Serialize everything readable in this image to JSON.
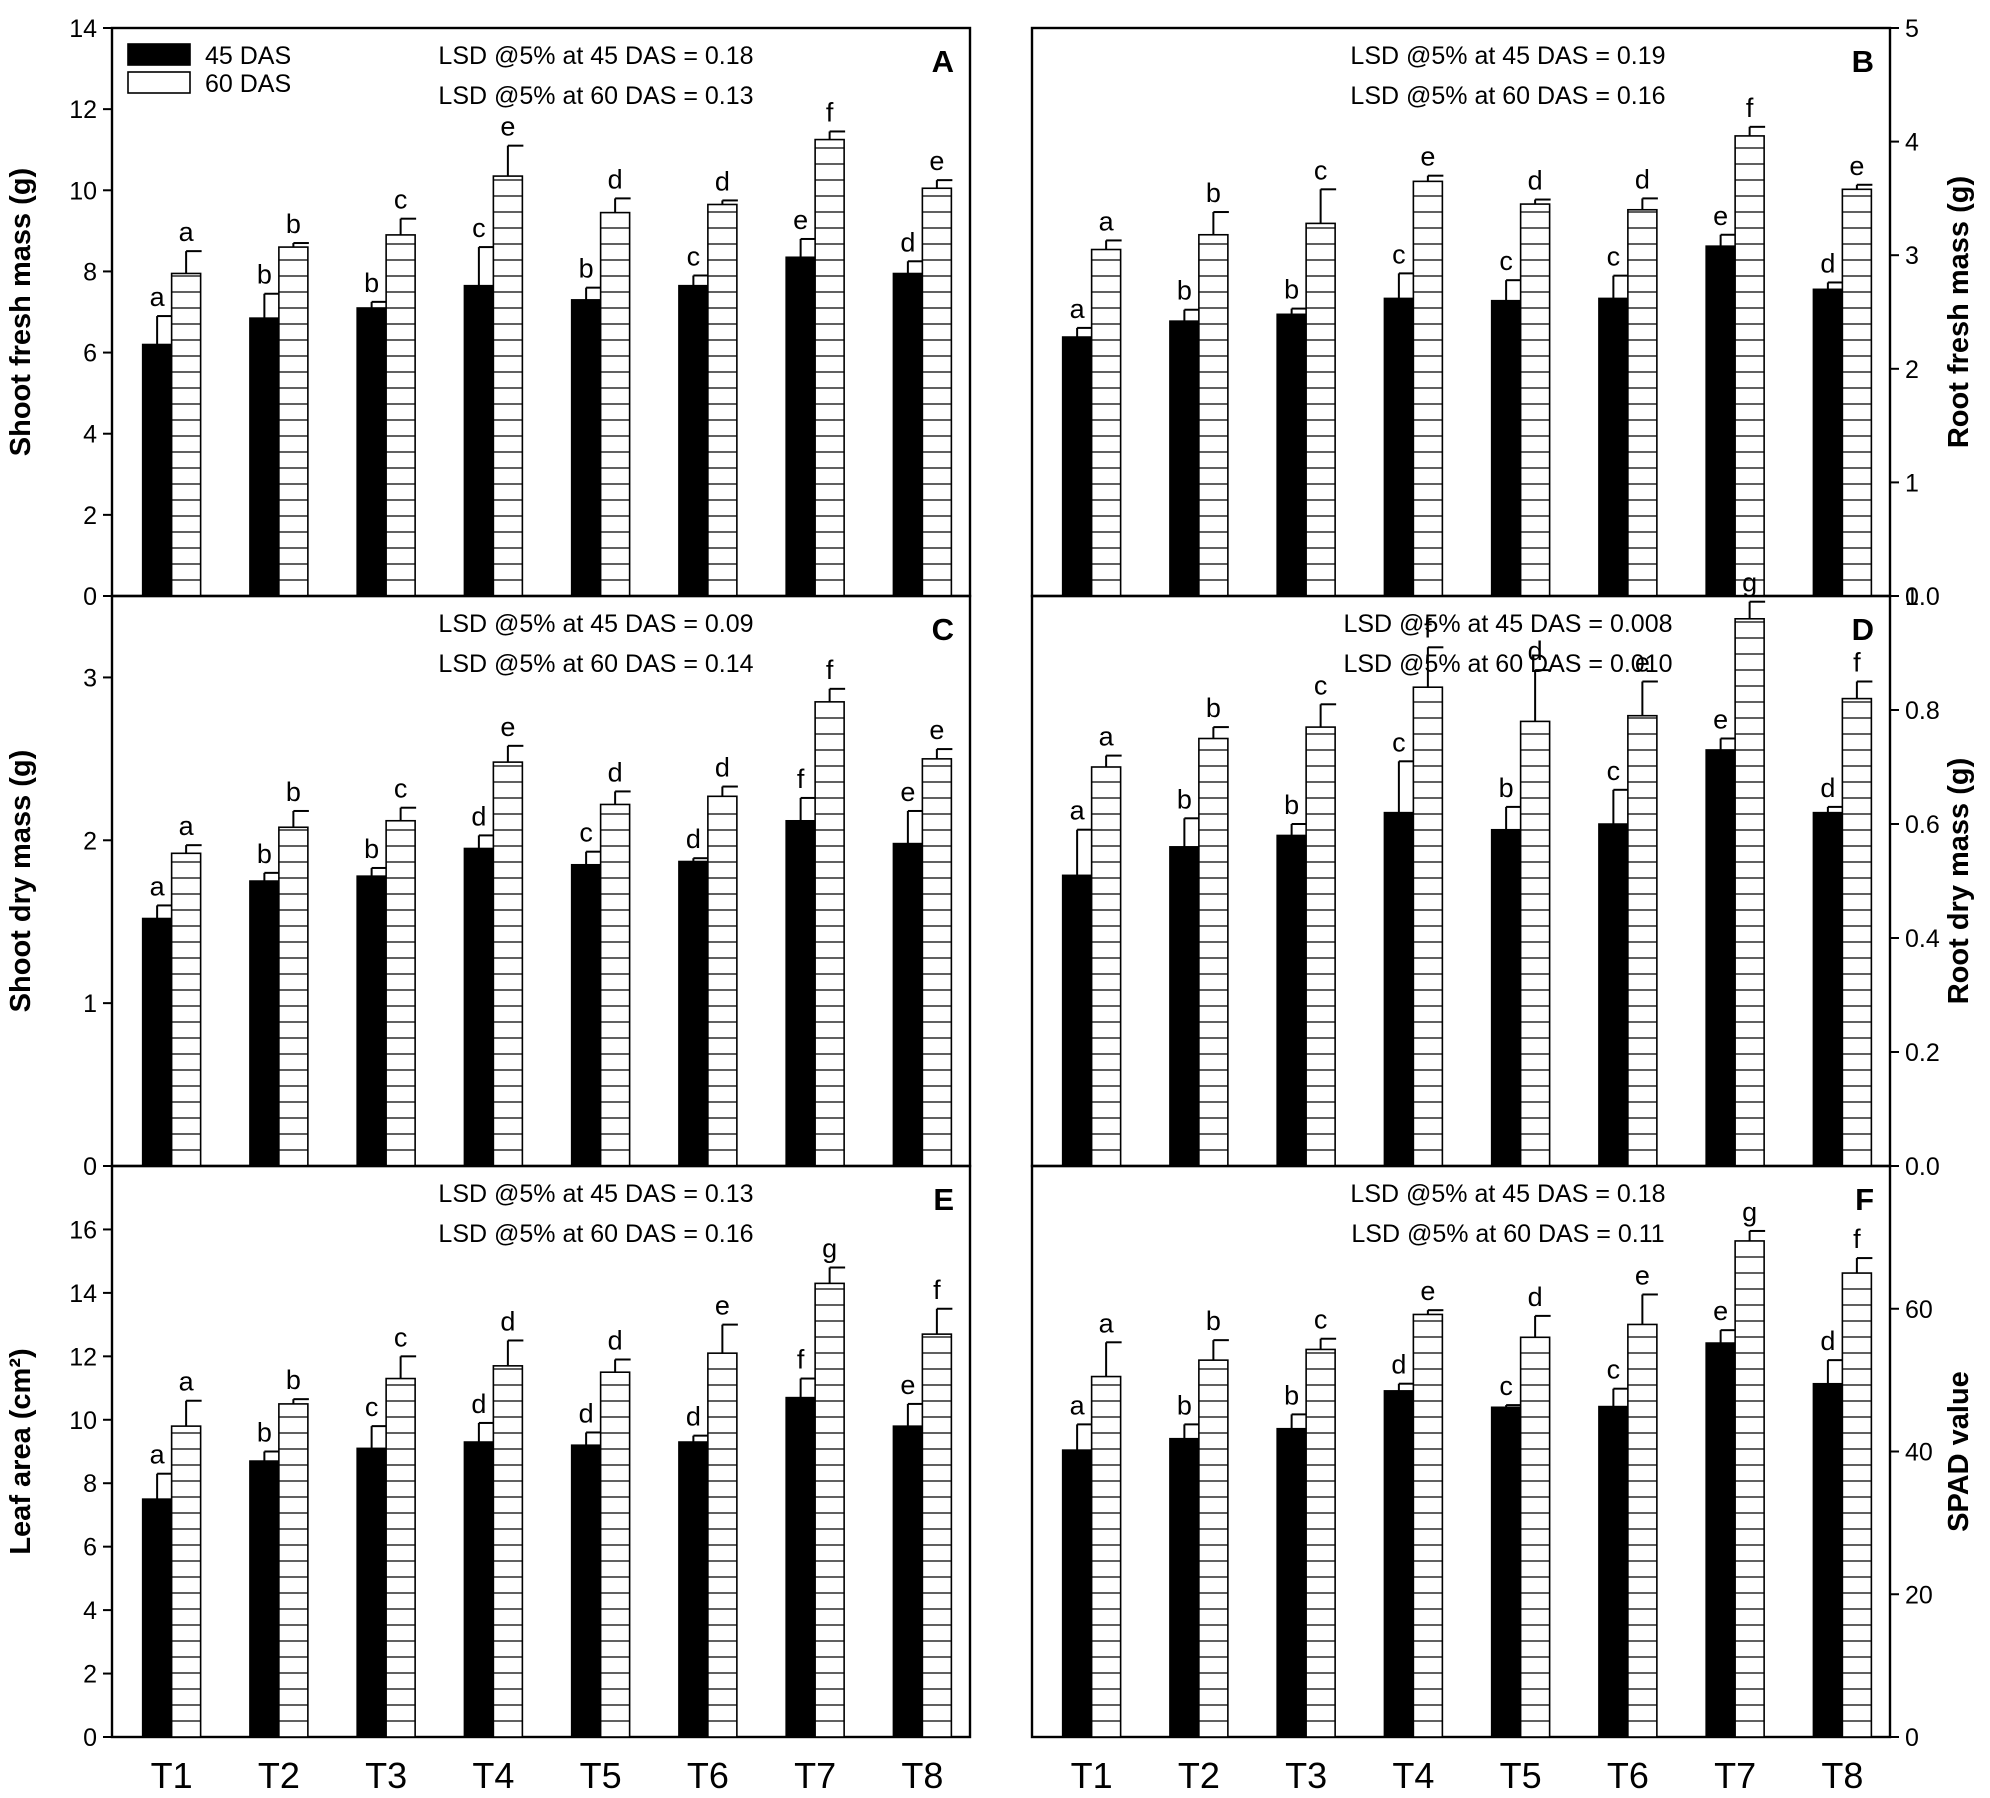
{
  "legend": {
    "items": [
      {
        "label": "45 DAS",
        "color": "#000000"
      },
      {
        "label": "60 DAS",
        "color": "#ffffff"
      }
    ]
  },
  "categories": [
    "T1",
    "T2",
    "T3",
    "T4",
    "T5",
    "T6",
    "T7",
    "T8"
  ],
  "chart_data": [
    {
      "type": "bar",
      "panel": "A",
      "ylabel": "Shoot fresh mass (g)",
      "ylim": [
        0,
        14
      ],
      "yticks": [
        "0",
        "2",
        "4",
        "6",
        "8",
        "10",
        "12",
        "14"
      ],
      "yaxis_side": "left",
      "lsd": [
        "LSD @5% at 45 DAS = 0.18",
        "LSD @5% at 60 DAS = 0.13"
      ],
      "series": [
        {
          "name": "45 DAS",
          "values": [
            6.2,
            6.85,
            7.1,
            7.65,
            7.3,
            7.65,
            8.35,
            7.95
          ],
          "errors": [
            0.7,
            0.6,
            0.15,
            0.95,
            0.3,
            0.25,
            0.45,
            0.3
          ],
          "letters": [
            "a",
            "b",
            "b",
            "c",
            "b",
            "c",
            "e",
            "d"
          ]
        },
        {
          "name": "60 DAS",
          "values": [
            7.95,
            8.6,
            8.9,
            10.35,
            9.45,
            9.65,
            11.25,
            10.05
          ],
          "errors": [
            0.55,
            0.1,
            0.4,
            0.75,
            0.35,
            0.1,
            0.2,
            0.2
          ],
          "letters": [
            "a",
            "b",
            "c",
            "e",
            "d",
            "d",
            "f",
            "e"
          ]
        }
      ]
    },
    {
      "type": "bar",
      "panel": "B",
      "ylabel": "Root fresh mass (g)",
      "ylim": [
        0,
        5
      ],
      "yticks": [
        "0",
        "1",
        "2",
        "3",
        "4",
        "5"
      ],
      "yaxis_side": "right",
      "lsd": [
        "LSD @5% at 45 DAS = 0.19",
        "LSD @5% at 60 DAS = 0.16"
      ],
      "series": [
        {
          "name": "45 DAS",
          "values": [
            2.28,
            2.42,
            2.48,
            2.62,
            2.6,
            2.62,
            3.08,
            2.7
          ],
          "errors": [
            0.08,
            0.1,
            0.05,
            0.22,
            0.18,
            0.2,
            0.1,
            0.06
          ],
          "letters": [
            "a",
            "b",
            "b",
            "c",
            "c",
            "c",
            "e",
            "d"
          ]
        },
        {
          "name": "60 DAS",
          "values": [
            3.05,
            3.18,
            3.28,
            3.65,
            3.45,
            3.4,
            4.05,
            3.58
          ],
          "errors": [
            0.08,
            0.2,
            0.3,
            0.05,
            0.04,
            0.1,
            0.08,
            0.04
          ],
          "letters": [
            "a",
            "b",
            "c",
            "e",
            "d",
            "d",
            "f",
            "e"
          ]
        }
      ]
    },
    {
      "type": "bar",
      "panel": "C",
      "ylabel": "Shoot dry mass (g)",
      "ylim": [
        0,
        3.5
      ],
      "yticks": [
        "0",
        "1",
        "2",
        "3"
      ],
      "yaxis_side": "left",
      "lsd": [
        "LSD @5% at 45 DAS = 0.09",
        "LSD @5% at 60 DAS = 0.14"
      ],
      "series": [
        {
          "name": "45 DAS",
          "values": [
            1.52,
            1.75,
            1.78,
            1.95,
            1.85,
            1.87,
            2.12,
            1.98
          ],
          "errors": [
            0.08,
            0.05,
            0.05,
            0.08,
            0.08,
            0.02,
            0.14,
            0.2
          ],
          "letters": [
            "a",
            "b",
            "b",
            "d",
            "c",
            "d",
            "f",
            "e"
          ]
        },
        {
          "name": "60 DAS",
          "values": [
            1.92,
            2.08,
            2.12,
            2.48,
            2.22,
            2.27,
            2.85,
            2.5
          ],
          "errors": [
            0.05,
            0.1,
            0.08,
            0.1,
            0.08,
            0.06,
            0.08,
            0.06
          ],
          "letters": [
            "a",
            "b",
            "c",
            "e",
            "d",
            "d",
            "f",
            "e"
          ]
        }
      ]
    },
    {
      "type": "bar",
      "panel": "D",
      "ylabel": "Root dry mass (g)",
      "ylim": [
        0,
        1.0
      ],
      "yticks": [
        "0.0",
        "0.2",
        "0.4",
        "0.6",
        "0.8",
        "1.0"
      ],
      "yaxis_side": "right",
      "lsd": [
        "LSD @5% at 45 DAS = 0.008",
        "LSD @5% at 60 DAS = 0.010"
      ],
      "series": [
        {
          "name": "45 DAS",
          "values": [
            0.51,
            0.56,
            0.58,
            0.62,
            0.59,
            0.6,
            0.73,
            0.62
          ],
          "errors": [
            0.08,
            0.05,
            0.02,
            0.09,
            0.04,
            0.06,
            0.02,
            0.01
          ],
          "letters": [
            "a",
            "b",
            "b",
            "c",
            "b",
            "c",
            "e",
            "d"
          ]
        },
        {
          "name": "60 DAS",
          "values": [
            0.7,
            0.75,
            0.77,
            0.84,
            0.78,
            0.79,
            0.96,
            0.82
          ],
          "errors": [
            0.02,
            0.02,
            0.04,
            0.07,
            0.09,
            0.06,
            0.03,
            0.03
          ],
          "letters": [
            "a",
            "b",
            "c",
            "f",
            "d",
            "e",
            "g",
            "f"
          ]
        }
      ]
    },
    {
      "type": "bar",
      "panel": "E",
      "ylabel": "Leaf area (cm²)",
      "ylim": [
        0,
        18
      ],
      "yticks": [
        "0",
        "2",
        "4",
        "6",
        "8",
        "10",
        "12",
        "14",
        "16"
      ],
      "yaxis_side": "left",
      "lsd": [
        "LSD @5% at 45 DAS = 0.13",
        "LSD @5% at 60 DAS = 0.16"
      ],
      "series": [
        {
          "name": "45 DAS",
          "values": [
            7.5,
            8.7,
            9.1,
            9.3,
            9.2,
            9.3,
            10.7,
            9.8
          ],
          "errors": [
            0.8,
            0.3,
            0.7,
            0.6,
            0.4,
            0.2,
            0.6,
            0.7
          ],
          "letters": [
            "a",
            "b",
            "c",
            "d",
            "d",
            "d",
            "f",
            "e"
          ]
        },
        {
          "name": "60 DAS",
          "values": [
            9.8,
            10.5,
            11.3,
            11.7,
            11.5,
            12.1,
            14.3,
            12.7
          ],
          "errors": [
            0.8,
            0.15,
            0.7,
            0.8,
            0.4,
            0.9,
            0.5,
            0.8
          ],
          "letters": [
            "a",
            "b",
            "c",
            "d",
            "d",
            "e",
            "g",
            "f"
          ]
        }
      ]
    },
    {
      "type": "bar",
      "panel": "F",
      "ylabel": "SPAD value",
      "ylim": [
        0,
        80
      ],
      "yticks": [
        "0",
        "20",
        "40",
        "60"
      ],
      "yaxis_side": "right",
      "lsd": [
        "LSD @5% at 45 DAS = 0.18",
        "LSD @5% at 60 DAS = 0.11"
      ],
      "series": [
        {
          "name": "45 DAS",
          "values": [
            40.2,
            41.8,
            43.2,
            48.5,
            46.2,
            46.3,
            55.2,
            49.5
          ],
          "errors": [
            3.6,
            2.0,
            2.0,
            1.0,
            0.3,
            2.5,
            1.8,
            3.3
          ],
          "letters": [
            "a",
            "b",
            "b",
            "d",
            "c",
            "c",
            "e",
            "d"
          ]
        },
        {
          "name": "60 DAS",
          "values": [
            50.5,
            52.8,
            54.3,
            59.2,
            56.0,
            57.8,
            69.5,
            65.0
          ],
          "errors": [
            4.8,
            2.8,
            1.5,
            0.6,
            3.0,
            4.2,
            1.4,
            2.1
          ],
          "letters": [
            "a",
            "b",
            "c",
            "e",
            "d",
            "e",
            "g",
            "f"
          ]
        }
      ]
    }
  ]
}
